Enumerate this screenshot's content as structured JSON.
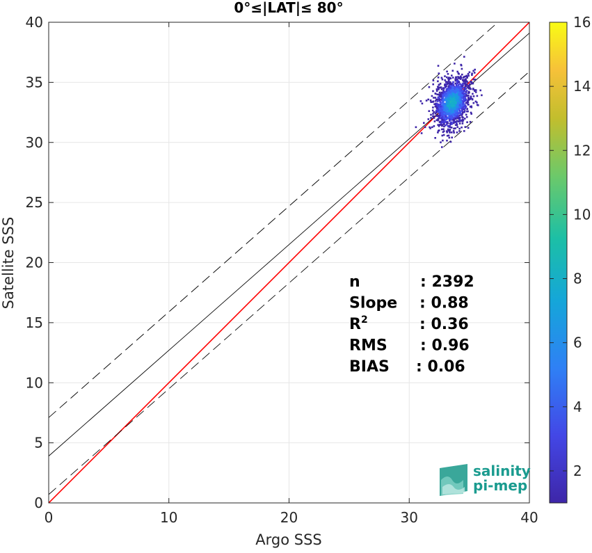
{
  "chart_data": {
    "type": "scatter",
    "subtype": "2d-density-histogram",
    "title": "0°≤|LAT|≤ 80°",
    "xlabel": "Argo SSS",
    "ylabel": "Satellite SSS",
    "xlim": [
      0,
      40
    ],
    "ylim": [
      0,
      40
    ],
    "xticks": [
      "0",
      "10",
      "20",
      "30",
      "40"
    ],
    "yticks": [
      "0",
      "5",
      "10",
      "15",
      "20",
      "25",
      "30",
      "35",
      "40"
    ],
    "grid": true,
    "colorbar": {
      "range": [
        1,
        16
      ],
      "ticks": [
        "2",
        "4",
        "6",
        "8",
        "10",
        "12",
        "14",
        "16"
      ],
      "colormap": "parula"
    },
    "density_center": {
      "x": 33.5,
      "y": 33.4
    },
    "lines": [
      {
        "name": "1:1",
        "slope": 1,
        "intercept": 0,
        "color": "#ff0000",
        "style": "solid"
      },
      {
        "name": "fit",
        "slope": 0.88,
        "intercept": 3.9,
        "color": "#000000",
        "style": "solid"
      },
      {
        "name": "upper",
        "slope": 0.88,
        "intercept": 7.1,
        "color": "#000000",
        "style": "dashed"
      },
      {
        "name": "lower",
        "slope": 0.88,
        "intercept": 0.7,
        "color": "#000000",
        "style": "dashed"
      }
    ],
    "stats": [
      {
        "label": "n",
        "sup": "",
        "value": ": 2392"
      },
      {
        "label": "Slope",
        "sup": "",
        "value": ": 0.88"
      },
      {
        "label": "R",
        "sup": "2",
        "value": ": 0.36"
      },
      {
        "label": "RMS",
        "sup": "",
        "value": ": 0.96"
      },
      {
        "label": "BIAS",
        "sup": "",
        "value": ": 0.06"
      }
    ]
  },
  "logo": {
    "line1": "salinity",
    "line2": "pi-mep"
  }
}
